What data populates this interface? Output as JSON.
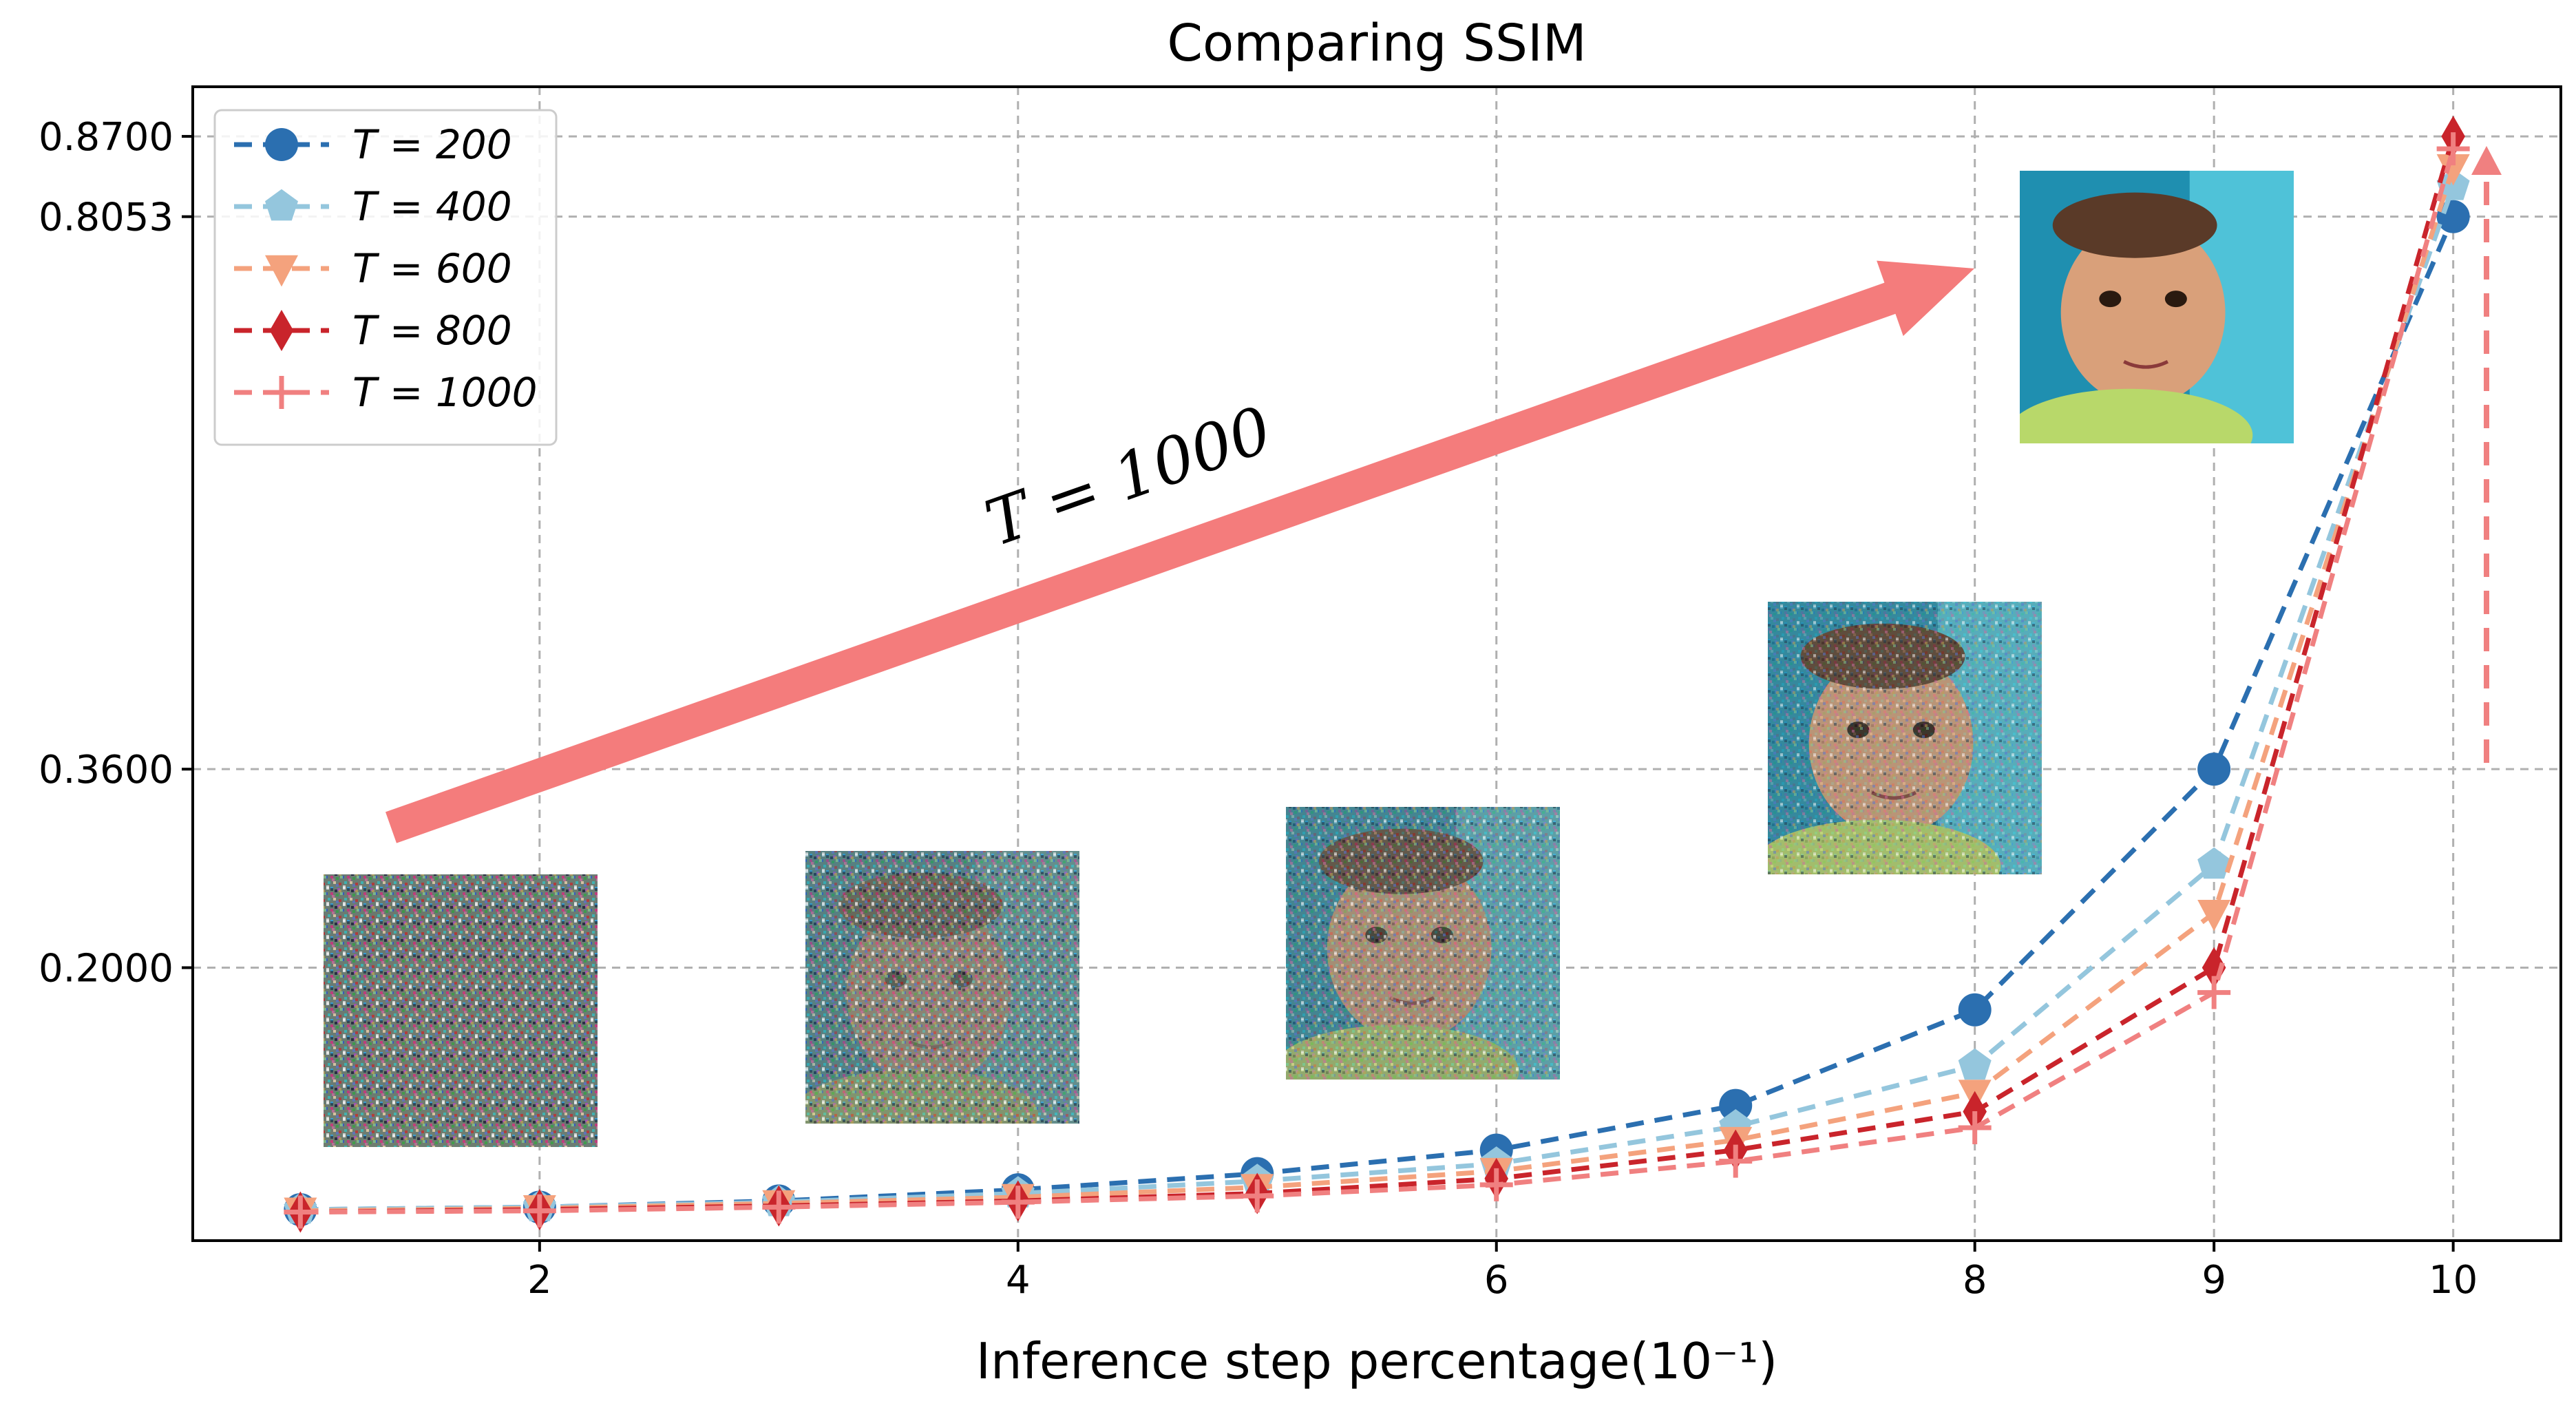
{
  "chart_data": {
    "type": "line",
    "title": "Comparing SSIM",
    "xlabel": "Inference step percentage(10⁻¹)",
    "ylabel": "",
    "xlim": [
      0.55,
      10.45
    ],
    "ylim": [
      -0.02,
      0.91
    ],
    "x_ticks": [
      {
        "value": 2,
        "label": "2"
      },
      {
        "value": 4,
        "label": "4"
      },
      {
        "value": 6,
        "label": "6"
      },
      {
        "value": 8,
        "label": "8"
      },
      {
        "value": 9,
        "label": "9"
      },
      {
        "value": 10,
        "label": "10"
      }
    ],
    "y_ticks": [
      {
        "value": 0.87,
        "label": "0.8700"
      },
      {
        "value": 0.8053,
        "label": "0.8053"
      },
      {
        "value": 0.36,
        "label": "0.3600"
      },
      {
        "value": 0.2,
        "label": "0.2000"
      }
    ],
    "grid": true,
    "legend_position": "top-left",
    "x": [
      1,
      2,
      3,
      4,
      5,
      6,
      7,
      8,
      9,
      10
    ],
    "series": [
      {
        "name": "T = 200",
        "color": "#2b6fb0",
        "marker": "circle",
        "values": [
          0.005,
          0.007,
          0.012,
          0.021,
          0.034,
          0.053,
          0.089,
          0.166,
          0.36,
          0.8053
        ]
      },
      {
        "name": "T = 400",
        "color": "#94c6dd",
        "marker": "pentagon",
        "values": [
          0.005,
          0.007,
          0.011,
          0.018,
          0.028,
          0.042,
          0.072,
          0.121,
          0.283,
          0.83
        ]
      },
      {
        "name": "T = 600",
        "color": "#f4a27d",
        "marker": "triangle-down",
        "values": [
          0.004,
          0.006,
          0.01,
          0.015,
          0.023,
          0.036,
          0.061,
          0.099,
          0.244,
          0.845
        ]
      },
      {
        "name": "T = 800",
        "color": "#c9242b",
        "marker": "diamond",
        "values": [
          0.003,
          0.005,
          0.008,
          0.012,
          0.018,
          0.03,
          0.053,
          0.084,
          0.2,
          0.87
        ]
      },
      {
        "name": "T = 1000",
        "color": "#f08080",
        "marker": "plus",
        "values": [
          0.003,
          0.004,
          0.007,
          0.011,
          0.016,
          0.025,
          0.044,
          0.071,
          0.18,
          0.86
        ]
      }
    ],
    "annotations": [
      {
        "text": "T = 1000",
        "type": "arrow",
        "color": "#f47c7c"
      },
      {
        "text": "",
        "type": "dashed-arrow",
        "color": "#f08080"
      }
    ],
    "inset_images": [
      {
        "name": "noise-image-x2",
        "noise": 1.0
      },
      {
        "name": "noise-image-x4",
        "noise": 0.75
      },
      {
        "name": "noise-image-x6",
        "noise": 0.5
      },
      {
        "name": "noise-image-x8",
        "noise": 0.3
      },
      {
        "name": "clean-image-x10",
        "noise": 0.0
      }
    ]
  }
}
